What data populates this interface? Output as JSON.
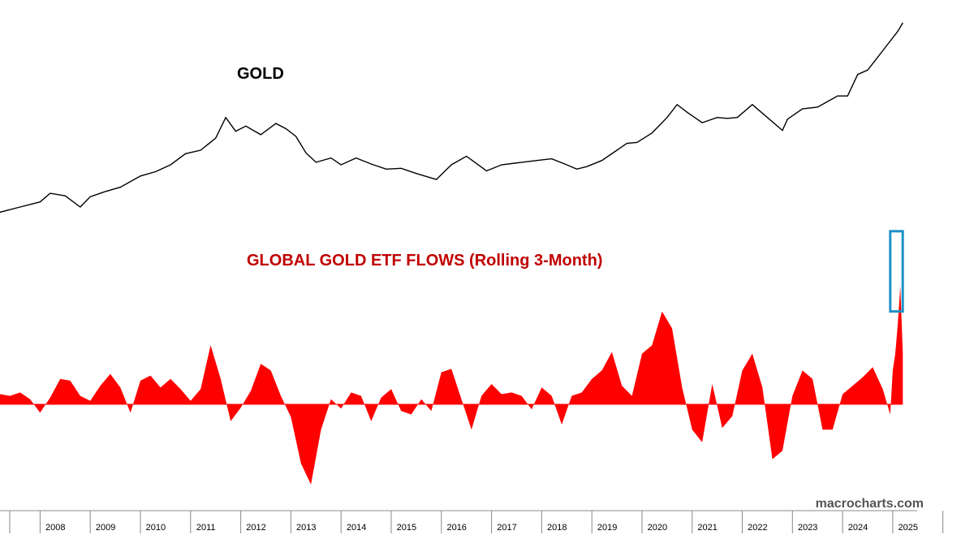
{
  "colors": {
    "gold_line": "#000000",
    "flows_fill": "#ff0000",
    "flows_title": "#c00000",
    "highlight_box": "#1e90c8",
    "axis": "#888888"
  },
  "watermark": "macrocharts.com",
  "chart_data": [
    {
      "type": "line",
      "title": "GOLD",
      "xlabel": "",
      "ylabel": "",
      "x_unit": "year",
      "xlim": [
        2007.2,
        2025.6
      ],
      "ylim": [
        600,
        2900
      ],
      "grid": false,
      "series": [
        {
          "x": [
            2007.2,
            2007.6,
            2008.0,
            2008.2,
            2008.5,
            2008.8,
            2009.0,
            2009.3,
            2009.6,
            2010.0,
            2010.3,
            2010.6,
            2010.9,
            2011.2,
            2011.5,
            2011.7,
            2011.9,
            2012.1,
            2012.4,
            2012.7,
            2012.9,
            2013.1,
            2013.3,
            2013.5,
            2013.8,
            2014.0,
            2014.3,
            2014.6,
            2014.9,
            2015.2,
            2015.5,
            2015.9,
            2016.2,
            2016.5,
            2016.9,
            2017.2,
            2017.6,
            2017.9,
            2018.2,
            2018.5,
            2018.7,
            2018.9,
            2019.2,
            2019.5,
            2019.7,
            2019.9,
            2020.2,
            2020.5,
            2020.7,
            2020.9,
            2021.2,
            2021.5,
            2021.7,
            2021.9,
            2022.2,
            2022.5,
            2022.8,
            2022.9,
            2023.2,
            2023.5,
            2023.9,
            2024.1,
            2024.3,
            2024.5,
            2024.7,
            2024.9,
            2025.1,
            2025.2
          ],
          "values": [
            700,
            760,
            820,
            920,
            890,
            760,
            880,
            940,
            990,
            1120,
            1170,
            1250,
            1380,
            1420,
            1560,
            1800,
            1640,
            1700,
            1600,
            1730,
            1670,
            1580,
            1390,
            1280,
            1330,
            1250,
            1330,
            1260,
            1200,
            1210,
            1150,
            1080,
            1250,
            1350,
            1180,
            1250,
            1280,
            1300,
            1320,
            1250,
            1200,
            1230,
            1300,
            1420,
            1500,
            1510,
            1620,
            1800,
            1950,
            1860,
            1740,
            1800,
            1790,
            1800,
            1950,
            1800,
            1650,
            1780,
            1900,
            1920,
            2050,
            2050,
            2300,
            2350,
            2500,
            2650,
            2800,
            2900
          ]
        }
      ]
    },
    {
      "type": "area",
      "title": "GLOBAL GOLD ETF FLOWS (Rolling 3-Month)",
      "xlabel": "",
      "ylabel": "",
      "x_unit": "year",
      "xlim": [
        2007.2,
        2025.6
      ],
      "ylim": [
        -110,
        140
      ],
      "grid": false,
      "categories": [
        "2008",
        "2009",
        "2010",
        "2011",
        "2012",
        "2013",
        "2014",
        "2015",
        "2016",
        "2017",
        "2018",
        "2019",
        "2020",
        "2021",
        "2022",
        "2023",
        "2024",
        "2025"
      ],
      "annotations": [
        {
          "type": "box",
          "x_range": [
            2024.95,
            2025.2
          ],
          "y_range": [
            110,
            205
          ],
          "color": "#1e90c8"
        }
      ],
      "series": [
        {
          "x": [
            2007.2,
            2007.4,
            2007.6,
            2007.8,
            2008.0,
            2008.2,
            2008.4,
            2008.6,
            2008.8,
            2009.0,
            2009.2,
            2009.4,
            2009.6,
            2009.8,
            2010.0,
            2010.2,
            2010.4,
            2010.6,
            2010.8,
            2011.0,
            2011.2,
            2011.4,
            2011.6,
            2011.8,
            2012.0,
            2012.2,
            2012.4,
            2012.6,
            2012.8,
            2013.0,
            2013.2,
            2013.4,
            2013.6,
            2013.8,
            2014.0,
            2014.2,
            2014.4,
            2014.6,
            2014.8,
            2015.0,
            2015.2,
            2015.4,
            2015.6,
            2015.8,
            2016.0,
            2016.2,
            2016.4,
            2016.6,
            2016.8,
            2017.0,
            2017.2,
            2017.4,
            2017.6,
            2017.8,
            2018.0,
            2018.2,
            2018.4,
            2018.6,
            2018.8,
            2019.0,
            2019.2,
            2019.4,
            2019.6,
            2019.8,
            2020.0,
            2020.2,
            2020.4,
            2020.6,
            2020.8,
            2021.0,
            2021.2,
            2021.4,
            2021.6,
            2021.8,
            2022.0,
            2022.2,
            2022.4,
            2022.6,
            2022.8,
            2023.0,
            2023.2,
            2023.4,
            2023.6,
            2023.8,
            2024.0,
            2024.2,
            2024.4,
            2024.6,
            2024.8,
            2024.95,
            2025.0,
            2025.05,
            2025.1,
            2025.15,
            2025.2
          ],
          "values": [
            12,
            10,
            14,
            6,
            -10,
            8,
            30,
            28,
            10,
            4,
            22,
            36,
            20,
            -10,
            28,
            34,
            20,
            30,
            18,
            4,
            18,
            70,
            30,
            -20,
            -4,
            16,
            48,
            40,
            10,
            -15,
            -70,
            -95,
            -30,
            6,
            -5,
            14,
            10,
            -20,
            8,
            18,
            -8,
            -12,
            6,
            -8,
            38,
            42,
            6,
            -30,
            10,
            24,
            12,
            14,
            10,
            -6,
            20,
            10,
            -24,
            10,
            14,
            30,
            40,
            62,
            22,
            10,
            60,
            70,
            110,
            90,
            20,
            -30,
            -45,
            24,
            -28,
            -14,
            40,
            60,
            20,
            -65,
            -55,
            10,
            40,
            30,
            -30,
            -30,
            12,
            22,
            32,
            44,
            18,
            -12,
            40,
            60,
            95,
            140,
            60
          ]
        }
      ]
    }
  ]
}
